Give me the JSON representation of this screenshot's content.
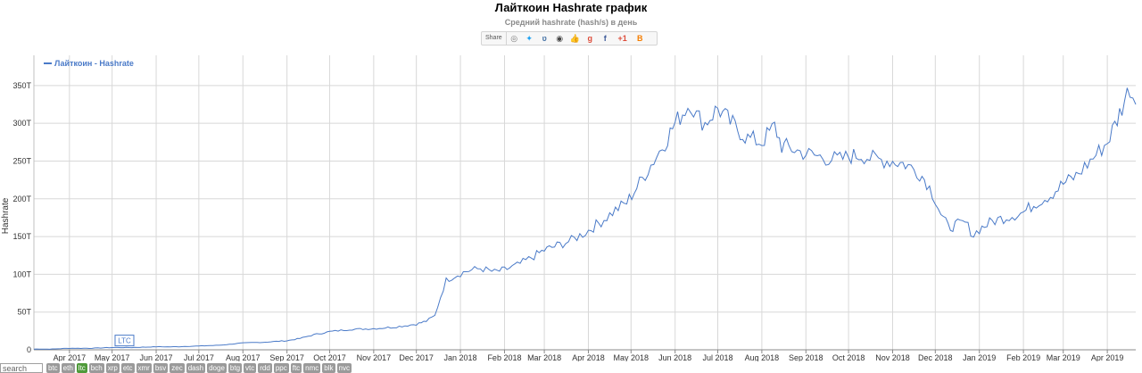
{
  "title": "Лайткоин Hashrate график",
  "subtitle": "Средний hashrate (hash/s) в день",
  "share": {
    "label": "Share",
    "icons": [
      {
        "name": "reddit-icon",
        "glyph": "◎",
        "color": "#777"
      },
      {
        "name": "twitter-icon",
        "glyph": "✦",
        "color": "#1da1f2"
      },
      {
        "name": "vk-icon",
        "glyph": "ʋ",
        "color": "#4a76a8"
      },
      {
        "name": "weibo-icon",
        "glyph": "◉",
        "color": "#444"
      },
      {
        "name": "like-icon",
        "glyph": "👍",
        "color": "#3b5998"
      },
      {
        "name": "google-plus-icon",
        "glyph": "g",
        "color": "#dd4b39"
      },
      {
        "name": "facebook-icon",
        "glyph": "f",
        "color": "#3b5998"
      },
      {
        "name": "google-plus-one-icon",
        "glyph": "+1",
        "color": "#dd4b39"
      },
      {
        "name": "blogger-icon",
        "glyph": "B",
        "color": "#f57d00"
      }
    ]
  },
  "search": {
    "placeholder": "search"
  },
  "coin_tags": [
    {
      "label": "btc",
      "active": false
    },
    {
      "label": "eth",
      "active": false
    },
    {
      "label": "ltc",
      "active": true
    },
    {
      "label": "bch",
      "active": false
    },
    {
      "label": "xrp",
      "active": false
    },
    {
      "label": "etc",
      "active": false
    },
    {
      "label": "xmr",
      "active": false
    },
    {
      "label": "bsv",
      "active": false
    },
    {
      "label": "zec",
      "active": false
    },
    {
      "label": "dash",
      "active": false
    },
    {
      "label": "doge",
      "active": false
    },
    {
      "label": "btg",
      "active": false
    },
    {
      "label": "vtc",
      "active": false
    },
    {
      "label": "rdd",
      "active": false
    },
    {
      "label": "ppc",
      "active": false
    },
    {
      "label": "ftc",
      "active": false
    },
    {
      "label": "nmc",
      "active": false
    },
    {
      "label": "blk",
      "active": false
    },
    {
      "label": "nvc",
      "active": false
    }
  ],
  "chart_data": {
    "type": "line",
    "ylabel": "Hashrate",
    "ylim": [
      0,
      390
    ],
    "y_ticks": [
      0,
      50,
      100,
      150,
      200,
      250,
      300,
      350
    ],
    "y_tick_labels": [
      "0",
      "50T",
      "100T",
      "150T",
      "200T",
      "250T",
      "300T",
      "350T"
    ],
    "x_range": [
      "2017-03-07",
      "2019-04-21"
    ],
    "x_ticks": [
      "2017-04-01",
      "2017-05-01",
      "2017-06-01",
      "2017-07-01",
      "2017-08-01",
      "2017-09-01",
      "2017-10-01",
      "2017-11-01",
      "2017-12-01",
      "2018-01-01",
      "2018-02-01",
      "2018-03-01",
      "2018-04-01",
      "2018-05-01",
      "2018-06-01",
      "2018-07-01",
      "2018-08-01",
      "2018-09-01",
      "2018-10-01",
      "2018-11-01",
      "2018-12-01",
      "2019-01-01",
      "2019-02-01",
      "2019-03-01",
      "2019-04-01"
    ],
    "x_tick_labels": [
      "Apr 2017",
      "May 2017",
      "Jun 2017",
      "Jul 2017",
      "Aug 2017",
      "Sep 2017",
      "Oct 2017",
      "Nov 2017",
      "Dec 2017",
      "Jan 2018",
      "Feb 2018",
      "Mar 2018",
      "Apr 2018",
      "May 2018",
      "Jun 2018",
      "Jul 2018",
      "Aug 2018",
      "Sep 2018",
      "Oct 2018",
      "Nov 2018",
      "Dec 2018",
      "Jan 2019",
      "Feb 2019",
      "Mar 2019",
      "Apr 2019"
    ],
    "grid": true,
    "legend_position": "top-left",
    "series": [
      {
        "name": "Лайткоин - Hashrate",
        "color": "#4a7ac8",
        "points": [
          [
            "2017-03-07",
            1
          ],
          [
            "2017-03-20",
            1
          ],
          [
            "2017-04-01",
            2
          ],
          [
            "2017-04-15",
            2
          ],
          [
            "2017-05-01",
            3
          ],
          [
            "2017-05-15",
            3
          ],
          [
            "2017-06-01",
            4
          ],
          [
            "2017-06-15",
            4
          ],
          [
            "2017-07-01",
            5
          ],
          [
            "2017-07-15",
            6
          ],
          [
            "2017-08-01",
            9
          ],
          [
            "2017-08-15",
            10
          ],
          [
            "2017-09-01",
            12
          ],
          [
            "2017-09-10",
            15
          ],
          [
            "2017-09-20",
            20
          ],
          [
            "2017-10-01",
            24
          ],
          [
            "2017-10-15",
            27
          ],
          [
            "2017-11-01",
            28
          ],
          [
            "2017-11-15",
            30
          ],
          [
            "2017-12-01",
            34
          ],
          [
            "2017-12-08",
            38
          ],
          [
            "2017-12-14",
            45
          ],
          [
            "2017-12-18",
            70
          ],
          [
            "2017-12-22",
            92
          ],
          [
            "2017-12-28",
            98
          ],
          [
            "2018-01-05",
            104
          ],
          [
            "2018-01-15",
            108
          ],
          [
            "2018-01-25",
            103
          ],
          [
            "2018-02-01",
            106
          ],
          [
            "2018-02-10",
            112
          ],
          [
            "2018-02-20",
            122
          ],
          [
            "2018-03-01",
            132
          ],
          [
            "2018-03-10",
            138
          ],
          [
            "2018-03-20",
            145
          ],
          [
            "2018-04-01",
            158
          ],
          [
            "2018-04-10",
            170
          ],
          [
            "2018-04-20",
            185
          ],
          [
            "2018-04-28",
            195
          ],
          [
            "2018-05-05",
            215
          ],
          [
            "2018-05-15",
            245
          ],
          [
            "2018-05-25",
            275
          ],
          [
            "2018-06-01",
            300
          ],
          [
            "2018-06-08",
            318
          ],
          [
            "2018-06-12",
            328
          ],
          [
            "2018-06-16",
            310
          ],
          [
            "2018-06-22",
            300
          ],
          [
            "2018-07-01",
            320
          ],
          [
            "2018-07-08",
            305
          ],
          [
            "2018-07-15",
            292
          ],
          [
            "2018-07-22",
            280
          ],
          [
            "2018-08-01",
            275
          ],
          [
            "2018-08-10",
            296
          ],
          [
            "2018-08-15",
            270
          ],
          [
            "2018-08-20",
            268
          ],
          [
            "2018-08-28",
            262
          ],
          [
            "2018-09-05",
            258
          ],
          [
            "2018-09-15",
            254
          ],
          [
            "2018-09-25",
            252
          ],
          [
            "2018-10-01",
            256
          ],
          [
            "2018-10-10",
            258
          ],
          [
            "2018-10-20",
            252
          ],
          [
            "2018-11-01",
            250
          ],
          [
            "2018-11-10",
            246
          ],
          [
            "2018-11-20",
            234
          ],
          [
            "2018-11-25",
            222
          ],
          [
            "2018-12-01",
            200
          ],
          [
            "2018-12-05",
            180
          ],
          [
            "2018-12-10",
            162
          ],
          [
            "2018-12-15",
            165
          ],
          [
            "2018-12-22",
            168
          ],
          [
            "2018-12-28",
            152
          ],
          [
            "2019-01-01",
            160
          ],
          [
            "2019-01-10",
            170
          ],
          [
            "2019-01-20",
            176
          ],
          [
            "2019-02-01",
            182
          ],
          [
            "2019-02-10",
            195
          ],
          [
            "2019-02-20",
            205
          ],
          [
            "2019-03-01",
            220
          ],
          [
            "2019-03-10",
            230
          ],
          [
            "2019-03-20",
            250
          ],
          [
            "2019-04-01",
            275
          ],
          [
            "2019-04-08",
            305
          ],
          [
            "2019-04-13",
            330
          ],
          [
            "2019-04-17",
            348
          ],
          [
            "2019-04-21",
            325
          ]
        ]
      }
    ],
    "annotations": [
      {
        "text": "LTC",
        "x": "2017-05-10",
        "y": 4
      }
    ]
  }
}
